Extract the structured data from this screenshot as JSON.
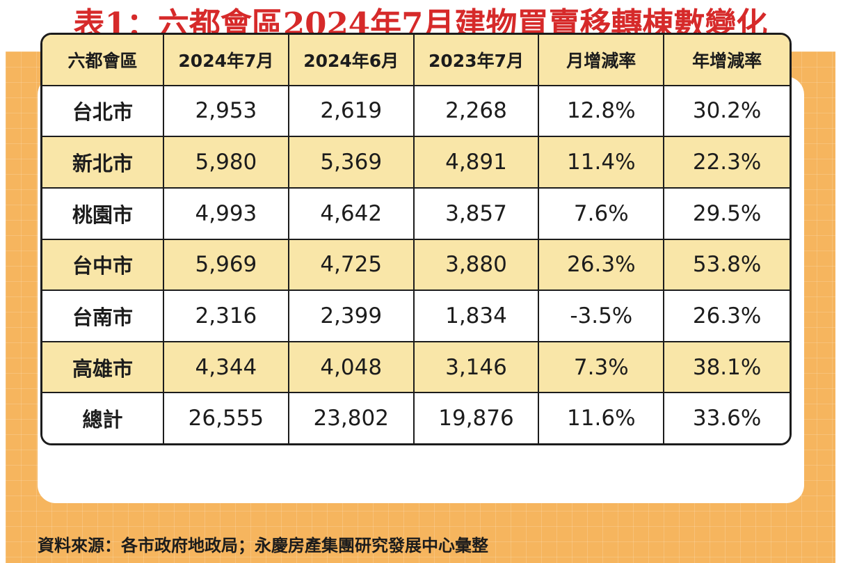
{
  "title": "表1：六都會區2024年7月建物買賣移轉棟數變化",
  "table": {
    "headers": [
      "六都會區",
      "2024年7月",
      "2024年6月",
      "2023年7月",
      "月增減率",
      "年增減率"
    ],
    "rows": [
      [
        "台北市",
        "2,953",
        "2,619",
        "2,268",
        "12.8%",
        "30.2%"
      ],
      [
        "新北市",
        "5,980",
        "5,369",
        "4,891",
        "11.4%",
        "22.3%"
      ],
      [
        "桃園市",
        "4,993",
        "4,642",
        "3,857",
        "7.6%",
        "29.5%"
      ],
      [
        "台中市",
        "5,969",
        "4,725",
        "3,880",
        "26.3%",
        "53.8%"
      ],
      [
        "台南市",
        "2,316",
        "2,399",
        "1,834",
        "-3.5%",
        "26.3%"
      ],
      [
        "高雄市",
        "4,344",
        "4,048",
        "3,146",
        "7.3%",
        "38.1%"
      ],
      [
        "總計",
        "26,555",
        "23,802",
        "19,876",
        "11.6%",
        "33.6%"
      ]
    ]
  },
  "source": "資料來源：各市政府地政局；永慶房產集團研究發展中心彙整",
  "colors": {
    "title": "#d62a2a",
    "background": "#f6b55e",
    "header_fill": "#f9e6a8",
    "alt_row_fill": "#f9e6a8",
    "border": "#1c1c1c"
  }
}
